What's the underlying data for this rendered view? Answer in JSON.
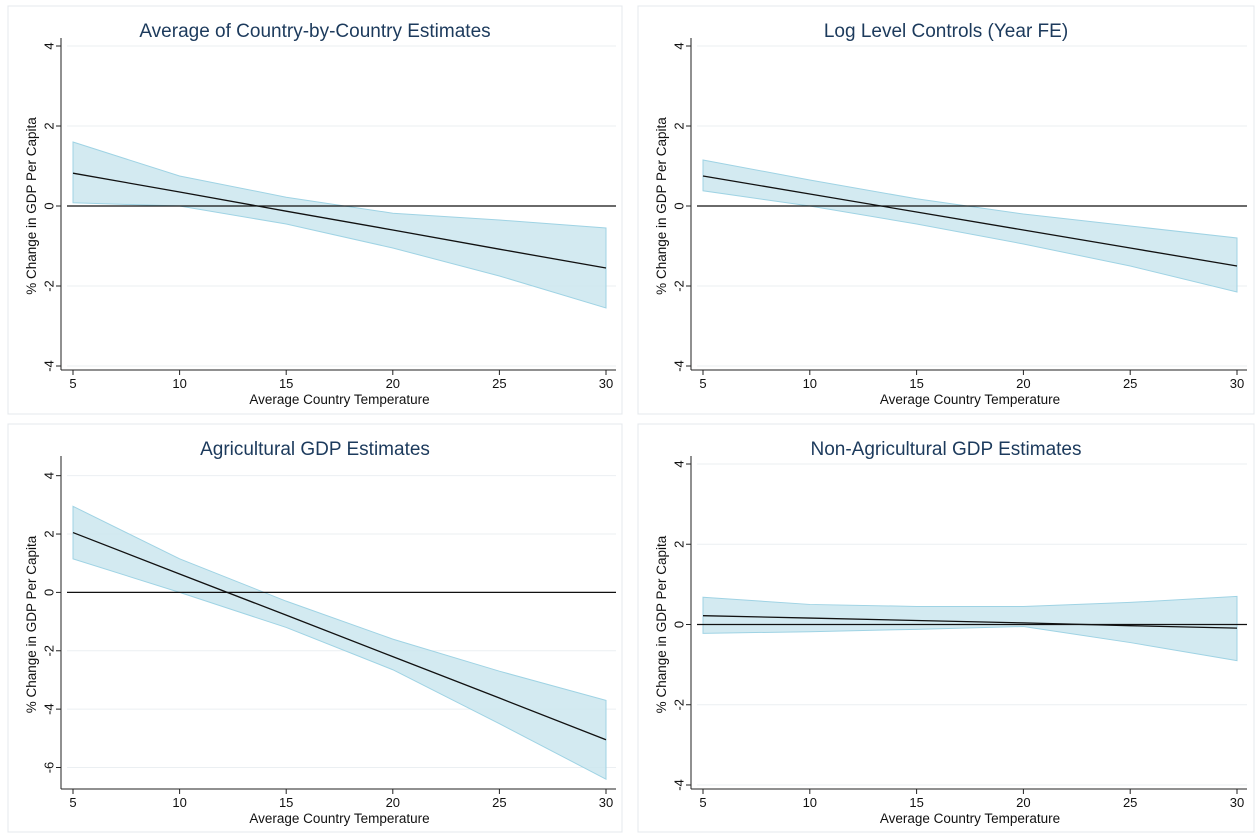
{
  "chart_data": [
    {
      "type": "line",
      "title": "Average of Country-by-Country Estimates",
      "xlabel": "Average Country Temperature",
      "ylabel": "% Change in GDP Per Capita",
      "xlim": [
        5,
        30
      ],
      "ylim": [
        -4,
        4
      ],
      "xticks": [
        5,
        10,
        15,
        20,
        25,
        30
      ],
      "yticks": [
        -4,
        -2,
        0,
        2,
        4
      ],
      "grid": true,
      "reference_line": 0,
      "series": [
        {
          "x": [
            5,
            10,
            15,
            20,
            25,
            30
          ],
          "values": [
            0.82,
            0.35,
            -0.13,
            -0.6,
            -1.08,
            -1.55
          ]
        }
      ],
      "ci": {
        "x": [
          5,
          10,
          15,
          20,
          25,
          30
        ],
        "lower": [
          0.08,
          0.0,
          -0.45,
          -1.05,
          -1.75,
          -2.55
        ],
        "upper": [
          1.6,
          0.75,
          0.22,
          -0.18,
          -0.35,
          -0.55
        ]
      }
    },
    {
      "type": "line",
      "title": "Log Level Controls (Year FE)",
      "xlabel": "Average Country Temperature",
      "ylabel": "% Change in GDP Per Capita",
      "xlim": [
        5,
        30
      ],
      "ylim": [
        -4,
        4
      ],
      "xticks": [
        5,
        10,
        15,
        20,
        25,
        30
      ],
      "yticks": [
        -4,
        -2,
        0,
        2,
        4
      ],
      "grid": true,
      "reference_line": 0,
      "series": [
        {
          "x": [
            5,
            10,
            15,
            20,
            25,
            30
          ],
          "values": [
            0.75,
            0.3,
            -0.15,
            -0.6,
            -1.05,
            -1.5
          ]
        }
      ],
      "ci": {
        "x": [
          5,
          10,
          15,
          20,
          25,
          30
        ],
        "lower": [
          0.38,
          0.0,
          -0.45,
          -0.95,
          -1.5,
          -2.15
        ],
        "upper": [
          1.15,
          0.65,
          0.18,
          -0.2,
          -0.5,
          -0.8
        ]
      }
    },
    {
      "type": "line",
      "title": "Agricultural GDP Estimates",
      "xlabel": "Average Country Temperature",
      "ylabel": "% Change in GDP Per Capita",
      "xlim": [
        5,
        30
      ],
      "ylim": [
        -6.6,
        4.4
      ],
      "xticks": [
        5,
        10,
        15,
        20,
        25,
        30
      ],
      "yticks": [
        -6,
        -4,
        -2,
        0,
        2,
        4
      ],
      "grid": true,
      "reference_line": 0,
      "series": [
        {
          "x": [
            5,
            10,
            15,
            20,
            25,
            30
          ],
          "values": [
            2.05,
            0.63,
            -0.78,
            -2.2,
            -3.62,
            -5.05
          ]
        }
      ],
      "ci": {
        "x": [
          5,
          10,
          15,
          20,
          25,
          30
        ],
        "lower": [
          1.15,
          0.0,
          -1.2,
          -2.65,
          -4.5,
          -6.4
        ],
        "upper": [
          2.95,
          1.15,
          -0.3,
          -1.6,
          -2.7,
          -3.7
        ]
      }
    },
    {
      "type": "line",
      "title": "Non-Agricultural GDP Estimates",
      "xlabel": "Average Country Temperature",
      "ylabel": "% Change in GDP Per Capita",
      "xlim": [
        5,
        30
      ],
      "ylim": [
        -4,
        4
      ],
      "xticks": [
        5,
        10,
        15,
        20,
        25,
        30
      ],
      "yticks": [
        -4,
        -2,
        0,
        2,
        4
      ],
      "grid": true,
      "reference_line": 0,
      "series": [
        {
          "x": [
            5,
            10,
            15,
            20,
            25,
            30
          ],
          "values": [
            0.22,
            0.16,
            0.1,
            0.04,
            -0.03,
            -0.09
          ]
        }
      ],
      "ci": {
        "x": [
          5,
          10,
          15,
          20,
          25,
          30
        ],
        "lower": [
          -0.22,
          -0.18,
          -0.12,
          -0.05,
          -0.45,
          -0.9
        ],
        "upper": [
          0.68,
          0.5,
          0.45,
          0.45,
          0.55,
          0.7
        ]
      }
    }
  ]
}
